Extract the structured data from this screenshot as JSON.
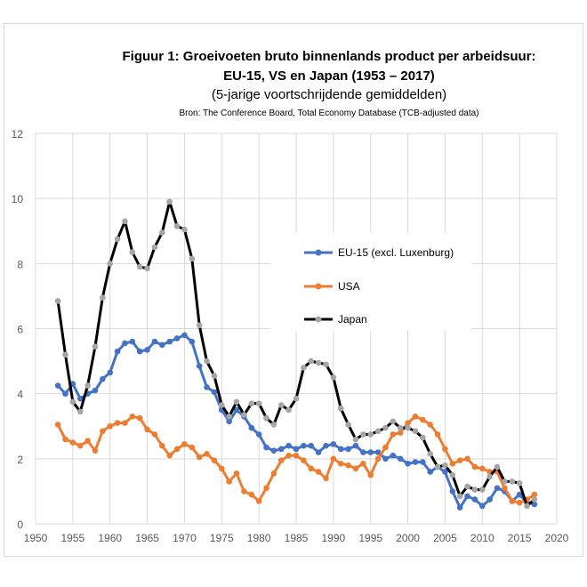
{
  "chart_data": {
    "type": "line",
    "title": "Figuur 1: Groeivoeten bruto binnenlands product per arbeidsuur:",
    "title_line2": "EU-15, VS en Japan (1953 – 2017)",
    "subtitle": "(5-jarige voortschrijdende gemiddelden)",
    "source": "Bron: The Conference Board, Total Economy Database (TCB-adjusted data)",
    "xlabel": "",
    "ylabel": "",
    "xlim": [
      1950,
      2020
    ],
    "ylim": [
      0,
      12
    ],
    "xticks": [
      "1950",
      "1955",
      "1960",
      "1965",
      "1970",
      "1975",
      "1980",
      "1985",
      "1990",
      "1995",
      "2000",
      "2005",
      "2010",
      "2015",
      "2020"
    ],
    "yticks": [
      "0",
      "2",
      "4",
      "6",
      "8",
      "10",
      "12"
    ],
    "grid": "vertical and horizontal",
    "legend_position": "center-right",
    "x": [
      1953,
      1954,
      1955,
      1956,
      1957,
      1958,
      1959,
      1960,
      1961,
      1962,
      1963,
      1964,
      1965,
      1966,
      1967,
      1968,
      1969,
      1970,
      1971,
      1972,
      1973,
      1974,
      1975,
      1976,
      1977,
      1978,
      1979,
      1980,
      1981,
      1982,
      1983,
      1984,
      1985,
      1986,
      1987,
      1988,
      1989,
      1990,
      1991,
      1992,
      1993,
      1994,
      1995,
      1996,
      1997,
      1998,
      1999,
      2000,
      2001,
      2002,
      2003,
      2004,
      2005,
      2006,
      2007,
      2008,
      2009,
      2010,
      2011,
      2012,
      2013,
      2014,
      2015,
      2016,
      2017
    ],
    "series": [
      {
        "name": "EU-15 (excl. Luxenburg)",
        "color": "#4472c4",
        "values": [
          4.25,
          4.0,
          4.3,
          3.85,
          4.0,
          4.1,
          4.45,
          4.65,
          5.3,
          5.55,
          5.6,
          5.3,
          5.35,
          5.6,
          5.5,
          5.6,
          5.7,
          5.8,
          5.6,
          4.85,
          4.2,
          4.05,
          3.5,
          3.15,
          3.5,
          3.3,
          2.95,
          2.75,
          2.35,
          2.25,
          2.3,
          2.4,
          2.3,
          2.4,
          2.4,
          2.2,
          2.4,
          2.45,
          2.3,
          2.3,
          2.4,
          2.2,
          2.2,
          2.2,
          2.0,
          2.1,
          2.0,
          1.85,
          1.9,
          1.9,
          1.6,
          1.75,
          1.6,
          1.0,
          0.5,
          0.85,
          0.75,
          0.55,
          0.75,
          1.1,
          1.0,
          0.7,
          0.9,
          0.65,
          0.6
        ]
      },
      {
        "name": "USA",
        "color": "#ed7d31",
        "values": [
          3.05,
          2.6,
          2.5,
          2.4,
          2.55,
          2.25,
          2.85,
          3.0,
          3.1,
          3.1,
          3.3,
          3.25,
          2.9,
          2.75,
          2.4,
          2.1,
          2.3,
          2.45,
          2.35,
          2.05,
          2.15,
          1.95,
          1.7,
          1.3,
          1.55,
          1.0,
          0.9,
          0.7,
          1.1,
          1.55,
          1.95,
          2.1,
          2.1,
          1.95,
          1.7,
          1.6,
          1.4,
          2.0,
          1.85,
          1.8,
          1.7,
          1.85,
          1.5,
          2.0,
          2.35,
          2.75,
          2.8,
          3.1,
          3.3,
          3.2,
          3.05,
          2.75,
          2.3,
          1.85,
          1.95,
          2.0,
          1.75,
          1.7,
          1.6,
          1.6,
          1.1,
          0.7,
          0.65,
          0.75,
          0.9
        ]
      },
      {
        "name": "Japan",
        "color": "#000000",
        "marker_color": "#a5a5a5",
        "values": [
          6.85,
          5.2,
          3.75,
          3.45,
          4.25,
          5.45,
          6.95,
          8.0,
          8.75,
          9.3,
          8.35,
          7.9,
          7.85,
          8.5,
          8.95,
          9.9,
          9.15,
          9.05,
          8.15,
          6.1,
          5.0,
          4.55,
          3.65,
          3.3,
          3.75,
          3.35,
          3.7,
          3.7,
          3.25,
          3.05,
          3.65,
          3.5,
          3.85,
          4.8,
          5.0,
          4.95,
          4.9,
          4.5,
          3.55,
          3.05,
          2.6,
          2.75,
          2.75,
          2.85,
          2.95,
          3.15,
          2.95,
          2.95,
          2.85,
          2.65,
          2.15,
          1.75,
          1.8,
          1.5,
          0.85,
          1.15,
          1.05,
          1.05,
          1.45,
          1.75,
          1.3,
          1.3,
          1.25,
          0.55,
          0.75
        ]
      }
    ]
  }
}
